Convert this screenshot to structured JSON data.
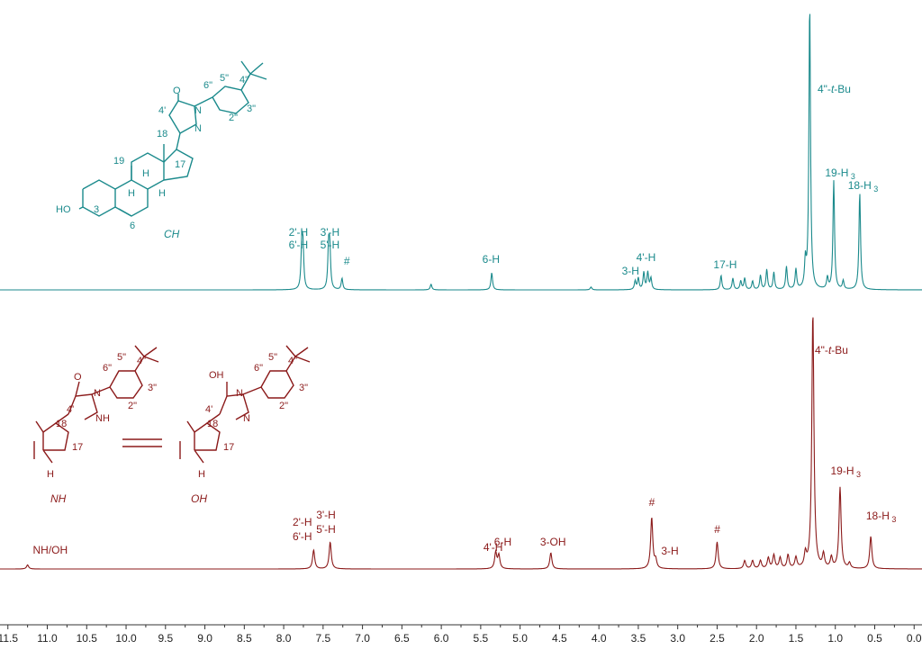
{
  "chart_data": {
    "type": "nmr_spectrum",
    "x_axis": {
      "reversed": true,
      "range": [
        11.6,
        -0.1
      ],
      "ticks": [
        "11.5",
        "11.0",
        "10.5",
        "10.0",
        "9.5",
        "9.0",
        "8.5",
        "8.0",
        "7.5",
        "7.0",
        "6.5",
        "6.0",
        "5.5",
        "5.0",
        "4.5",
        "4.0",
        "3.5",
        "3.0",
        "2.5",
        "2.0",
        "1.5",
        "1.0",
        "0.5",
        "0.0"
      ],
      "label": ""
    },
    "colors": {
      "top": "#1b8a8c",
      "bottom": "#8b1a1a"
    },
    "spectra": [
      {
        "id": "top",
        "color": "#1b8a8c",
        "peaks": [
          {
            "ppm": 7.77,
            "h": 0.15
          },
          {
            "ppm": 7.755,
            "h": 0.13
          },
          {
            "ppm": 7.43,
            "h": 0.14
          },
          {
            "ppm": 7.415,
            "h": 0.13
          },
          {
            "ppm": 7.26,
            "h": 0.04
          },
          {
            "ppm": 6.13,
            "h": 0.02
          },
          {
            "ppm": 5.36,
            "h": 0.06
          },
          {
            "ppm": 4.1,
            "h": 0.01
          },
          {
            "ppm": 3.54,
            "h": 0.03
          },
          {
            "ppm": 3.5,
            "h": 0.04
          },
          {
            "ppm": 3.43,
            "h": 0.06
          },
          {
            "ppm": 3.38,
            "h": 0.06
          },
          {
            "ppm": 3.34,
            "h": 0.04
          },
          {
            "ppm": 2.45,
            "h": 0.05
          },
          {
            "ppm": 2.3,
            "h": 0.04
          },
          {
            "ppm": 2.2,
            "h": 0.03
          },
          {
            "ppm": 2.15,
            "h": 0.04
          },
          {
            "ppm": 2.05,
            "h": 0.03
          },
          {
            "ppm": 1.95,
            "h": 0.05
          },
          {
            "ppm": 1.87,
            "h": 0.07
          },
          {
            "ppm": 1.78,
            "h": 0.06
          },
          {
            "ppm": 1.62,
            "h": 0.08
          },
          {
            "ppm": 1.5,
            "h": 0.07
          },
          {
            "ppm": 1.38,
            "h": 0.09
          },
          {
            "ppm": 1.325,
            "h": 1.0
          },
          {
            "ppm": 1.1,
            "h": 0.04
          },
          {
            "ppm": 1.02,
            "h": 0.38
          },
          {
            "ppm": 0.9,
            "h": 0.03
          },
          {
            "ppm": 0.69,
            "h": 0.34
          }
        ],
        "annotations": [
          {
            "lines": [
              "2'-H",
              "6'-H"
            ],
            "ppm": 7.8
          },
          {
            "lines": [
              "3'-H",
              "5'-H"
            ],
            "ppm": 7.4
          },
          {
            "lines": [
              "#"
            ],
            "ppm": 7.2
          },
          {
            "lines": [
              "6-H"
            ],
            "ppm": 5.37
          },
          {
            "lines": [
              "3-H"
            ],
            "ppm": 3.6
          },
          {
            "lines": [
              "4'-H"
            ],
            "ppm": 3.38
          },
          {
            "lines": [
              "17-H"
            ],
            "ppm": 2.4
          },
          {
            "lines": [
              "19-H",
              "3"
            ],
            "ppm": 0.97,
            "subscript": true
          },
          {
            "lines": [
              "18-H",
              "3"
            ],
            "ppm": 0.68,
            "subscript": true
          },
          {
            "lines": [
              "4\"-",
              "t",
              "-Bu"
            ],
            "ppm": 1.05,
            "tBu": true
          }
        ],
        "structure_labels": {
          "title": "CH",
          "atoms": [
            "19",
            "18",
            "17",
            "3",
            "6",
            "HO",
            "H",
            "H",
            "H",
            "O",
            "N",
            "N",
            "4'",
            "2\"",
            "3\"",
            "4\"",
            "5\"",
            "6\""
          ]
        }
      },
      {
        "id": "bottom",
        "color": "#8b1a1a",
        "peaks": [
          {
            "ppm": 11.25,
            "h": 0.015
          },
          {
            "ppm": 7.62,
            "h": 0.07
          },
          {
            "ppm": 7.41,
            "h": 0.1
          },
          {
            "ppm": 5.31,
            "h": 0.06
          },
          {
            "ppm": 5.27,
            "h": 0.05
          },
          {
            "ppm": 4.61,
            "h": 0.06
          },
          {
            "ppm": 3.33,
            "h": 0.19
          },
          {
            "ppm": 3.28,
            "h": 0.03
          },
          {
            "ppm": 2.5,
            "h": 0.1
          },
          {
            "ppm": 2.15,
            "h": 0.03
          },
          {
            "ppm": 2.05,
            "h": 0.03
          },
          {
            "ppm": 1.95,
            "h": 0.03
          },
          {
            "ppm": 1.85,
            "h": 0.04
          },
          {
            "ppm": 1.78,
            "h": 0.05
          },
          {
            "ppm": 1.7,
            "h": 0.04
          },
          {
            "ppm": 1.6,
            "h": 0.05
          },
          {
            "ppm": 1.5,
            "h": 0.04
          },
          {
            "ppm": 1.38,
            "h": 0.05
          },
          {
            "ppm": 1.285,
            "h": 0.95
          },
          {
            "ppm": 1.15,
            "h": 0.05
          },
          {
            "ppm": 1.05,
            "h": 0.04
          },
          {
            "ppm": 0.94,
            "h": 0.3
          },
          {
            "ppm": 0.82,
            "h": 0.02
          },
          {
            "ppm": 0.55,
            "h": 0.12
          }
        ],
        "annotations": [
          {
            "lines": [
              "NH/OH"
            ],
            "ppm": 11.0
          },
          {
            "lines": [
              "2'-H",
              "6'-H"
            ],
            "ppm": 7.75
          },
          {
            "lines": [
              "3'-H",
              "5'-H"
            ],
            "ppm": 7.45
          },
          {
            "lines": [
              "4'-H"
            ],
            "ppm": 5.32
          },
          {
            "lines": [
              "6-H"
            ],
            "ppm": 5.22
          },
          {
            "lines": [
              "3-OH"
            ],
            "ppm": 4.6
          },
          {
            "lines": [
              "#"
            ],
            "ppm": 3.33
          },
          {
            "lines": [
              "3-H"
            ],
            "ppm": 3.1
          },
          {
            "lines": [
              "#"
            ],
            "ppm": 2.5
          },
          {
            "lines": [
              "19-H",
              "3"
            ],
            "ppm": 0.9,
            "subscript": true
          },
          {
            "lines": [
              "18-H",
              "3"
            ],
            "ppm": 0.45,
            "subscript": true
          },
          {
            "lines": [
              "4\"-",
              "t",
              "-Bu"
            ],
            "ppm": 1.05,
            "tBu": true
          }
        ],
        "structure_labels": {
          "tautomer_names": [
            "NH",
            "OH"
          ],
          "atoms_nh": [
            "O",
            "N",
            "NH",
            "4'",
            "18",
            "17",
            "H",
            "2\"",
            "3\"",
            "4\"",
            "5\"",
            "6\""
          ],
          "atoms_oh": [
            "OH",
            "N",
            "N",
            "4'",
            "18",
            "17",
            "H",
            "2\"",
            "3\"",
            "4\"",
            "5\"",
            "6\""
          ]
        }
      }
    ]
  }
}
